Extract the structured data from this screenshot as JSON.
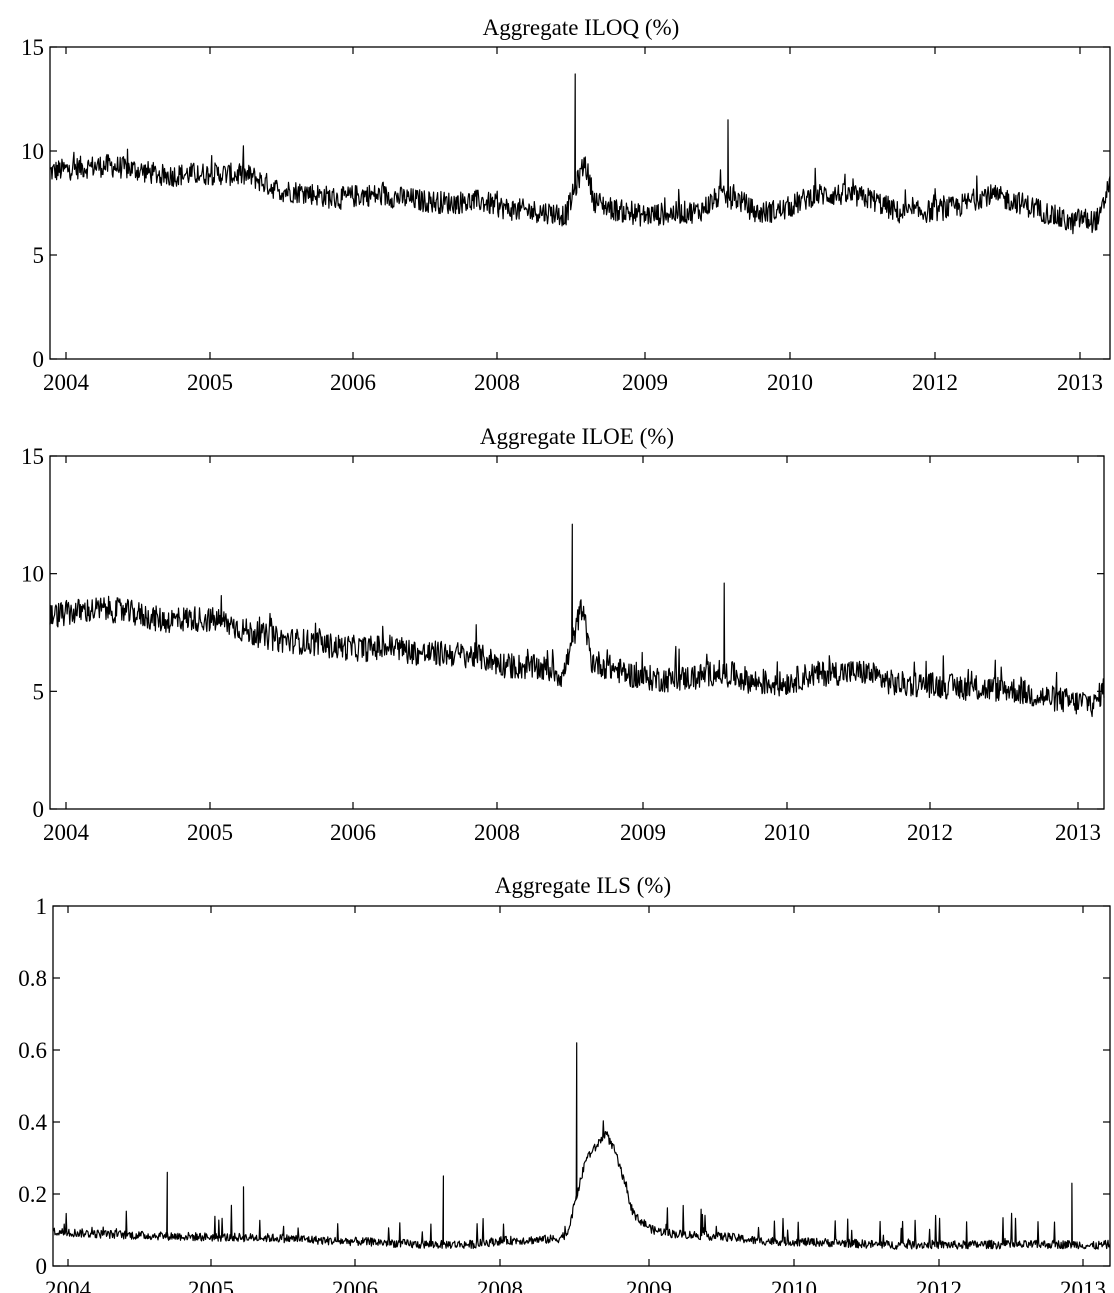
{
  "figure": {
    "background": "#ffffff",
    "line_color": "#000000"
  },
  "chart_data": [
    {
      "type": "line",
      "title": "Aggregate ILOQ (%)",
      "xlabel": "",
      "ylabel": "",
      "x_range": [
        "2004-01",
        "2013-04"
      ],
      "ylim": [
        0,
        15
      ],
      "y_ticks": [
        0,
        5,
        10,
        15
      ],
      "y_tick_labels": [
        "0",
        "5",
        "10",
        "15"
      ],
      "x_tick_labels": [
        "2004",
        "2005",
        "2006",
        "2008",
        "2009",
        "2010",
        "2012",
        "2013"
      ],
      "grid": false,
      "legend": "none",
      "series": [
        {
          "x": [
            "2004-01",
            "2004-04",
            "2004-07",
            "2004-10",
            "2005-01",
            "2005-04",
            "2005-07",
            "2005-10",
            "2006-01",
            "2006-04",
            "2006-07",
            "2006-10",
            "2007-01",
            "2007-04",
            "2007-07",
            "2007-10",
            "2008-01",
            "2008-04",
            "2008-06",
            "2008-07",
            "2008-08",
            "2008-09",
            "2008-10",
            "2008-12",
            "2009-03",
            "2009-06",
            "2009-09",
            "2009-11",
            "2009-12",
            "2010-01",
            "2010-03",
            "2010-06",
            "2010-09",
            "2010-12",
            "2011-03",
            "2011-06",
            "2011-09",
            "2011-12",
            "2012-03",
            "2012-06",
            "2012-09",
            "2012-12",
            "2013-01",
            "2013-02",
            "2013-03",
            "2013-04"
          ],
          "values": [
            9.0,
            9.2,
            9.3,
            9.1,
            8.8,
            8.9,
            8.9,
            8.8,
            8.1,
            8.0,
            7.7,
            7.9,
            7.8,
            7.6,
            7.5,
            7.6,
            7.2,
            7.1,
            7.0,
            6.9,
            13.7,
            9.5,
            7.6,
            7.2,
            6.9,
            7.0,
            7.1,
            7.8,
            11.5,
            7.7,
            7.0,
            7.2,
            7.9,
            7.9,
            7.7,
            7.0,
            7.1,
            7.3,
            7.9,
            7.6,
            7.1,
            6.5,
            6.8,
            6.6,
            6.8,
            8.7
          ]
        }
      ]
    },
    {
      "type": "line",
      "title": "Aggregate ILOE (%)",
      "xlabel": "",
      "ylabel": "",
      "x_range": [
        "2004-01",
        "2013-04"
      ],
      "ylim": [
        0,
        15
      ],
      "y_ticks": [
        0,
        5,
        10,
        15
      ],
      "y_tick_labels": [
        "0",
        "5",
        "10",
        "15"
      ],
      "x_tick_labels": [
        "2004",
        "2005",
        "2006",
        "2008",
        "2009",
        "2010",
        "2012",
        "2013"
      ],
      "grid": false,
      "legend": "none",
      "series": [
        {
          "x": [
            "2004-01",
            "2004-04",
            "2004-07",
            "2004-10",
            "2005-01",
            "2005-04",
            "2005-07",
            "2005-10",
            "2006-01",
            "2006-04",
            "2006-07",
            "2006-10",
            "2007-01",
            "2007-04",
            "2007-07",
            "2007-10",
            "2008-01",
            "2008-04",
            "2008-06",
            "2008-07",
            "2008-08",
            "2008-09",
            "2008-10",
            "2008-12",
            "2009-03",
            "2009-06",
            "2009-09",
            "2009-11",
            "2009-12",
            "2010-01",
            "2010-03",
            "2010-06",
            "2010-09",
            "2010-12",
            "2011-03",
            "2011-06",
            "2011-09",
            "2011-12",
            "2012-03",
            "2012-06",
            "2012-09",
            "2012-12",
            "2013-01",
            "2013-02",
            "2013-03",
            "2013-04"
          ],
          "values": [
            8.2,
            8.4,
            8.5,
            8.3,
            8.0,
            8.1,
            8.0,
            7.5,
            7.2,
            7.1,
            6.9,
            6.8,
            6.9,
            6.6,
            6.6,
            6.5,
            6.1,
            6.0,
            5.9,
            5.6,
            12.1,
            8.6,
            6.3,
            6.0,
            5.6,
            5.5,
            5.6,
            5.8,
            9.6,
            5.7,
            5.4,
            5.3,
            5.7,
            5.8,
            5.8,
            5.3,
            5.3,
            5.2,
            5.1,
            5.1,
            4.8,
            4.6,
            4.5,
            4.6,
            4.4,
            5.2
          ]
        }
      ]
    },
    {
      "type": "line",
      "title": "Aggregate ILS (%)",
      "xlabel": "",
      "ylabel": "",
      "x_range": [
        "2004-01",
        "2013-04"
      ],
      "ylim": [
        0,
        1
      ],
      "y_ticks": [
        0,
        0.2,
        0.4,
        0.6,
        0.8,
        1
      ],
      "y_tick_labels": [
        "0",
        "0.2",
        "0.4",
        "0.6",
        "0.8",
        "1"
      ],
      "x_tick_labels": [
        "2004",
        "2005",
        "2006",
        "2008",
        "2009",
        "2010",
        "2012",
        "2013"
      ],
      "grid": false,
      "legend": "none",
      "series": [
        {
          "x": [
            "2004-01",
            "2004-05",
            "2004-10",
            "2005-01",
            "2005-03",
            "2005-06",
            "2005-09",
            "2005-12",
            "2006-03",
            "2006-06",
            "2006-09",
            "2006-12",
            "2007-03",
            "2007-06",
            "2007-09",
            "2007-12",
            "2008-03",
            "2008-06",
            "2008-07",
            "2008-08",
            "2008-09",
            "2008-10",
            "2008-11",
            "2008-12",
            "2009-02",
            "2009-04",
            "2009-06",
            "2009-09",
            "2009-12",
            "2010-03",
            "2010-06",
            "2010-09",
            "2010-12",
            "2011-03",
            "2011-06",
            "2011-09",
            "2011-12",
            "2012-03",
            "2012-06",
            "2012-09",
            "2012-12",
            "2013-01",
            "2013-02",
            "2013-03",
            "2013-04"
          ],
          "values": [
            0.095,
            0.09,
            0.085,
            0.26,
            0.082,
            0.08,
            0.22,
            0.078,
            0.075,
            0.07,
            0.068,
            0.065,
            0.06,
            0.25,
            0.06,
            0.07,
            0.072,
            0.075,
            0.09,
            0.62,
            0.3,
            0.33,
            0.37,
            0.32,
            0.14,
            0.1,
            0.09,
            0.085,
            0.08,
            0.07,
            0.068,
            0.066,
            0.064,
            0.06,
            0.058,
            0.06,
            0.058,
            0.06,
            0.058,
            0.06,
            0.23,
            0.06,
            0.055,
            0.058,
            0.06
          ]
        }
      ]
    }
  ]
}
